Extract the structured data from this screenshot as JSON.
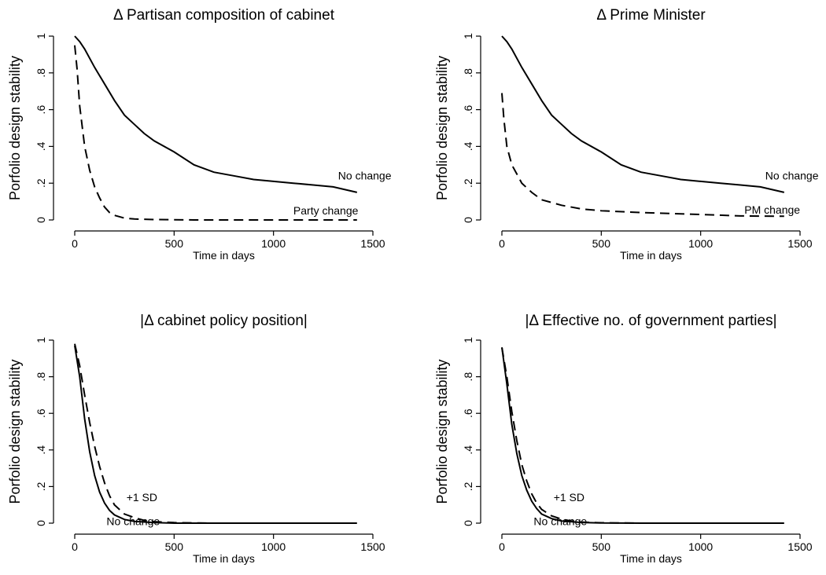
{
  "chart_data": [
    {
      "type": "line",
      "title": "Δ Partisan composition of cabinet",
      "xlabel": "Time in days",
      "ylabel": "Porfolio design stability",
      "xlim": [
        0,
        1500
      ],
      "ylim": [
        0,
        1
      ],
      "xticks": [
        "0",
        "500",
        "1000",
        "1500"
      ],
      "yticks": [
        "0",
        ".2",
        ".4",
        ".6",
        ".8",
        "1"
      ],
      "series": [
        {
          "name": "No change",
          "style": "solid",
          "label_at": [
            1325,
            0.22
          ],
          "x": [
            0,
            25,
            50,
            100,
            150,
            200,
            250,
            300,
            350,
            400,
            500,
            600,
            700,
            800,
            900,
            1000,
            1100,
            1200,
            1300,
            1420
          ],
          "y": [
            1.0,
            0.97,
            0.93,
            0.83,
            0.74,
            0.65,
            0.57,
            0.52,
            0.47,
            0.43,
            0.37,
            0.3,
            0.26,
            0.24,
            0.22,
            0.21,
            0.2,
            0.19,
            0.18,
            0.15
          ]
        },
        {
          "name": "Party change",
          "style": "dashed",
          "label_at": [
            1100,
            0.03
          ],
          "x": [
            0,
            12,
            25,
            50,
            75,
            100,
            125,
            150,
            175,
            200,
            250,
            300,
            400,
            600,
            1000,
            1420
          ],
          "y": [
            0.95,
            0.82,
            0.62,
            0.4,
            0.27,
            0.18,
            0.12,
            0.07,
            0.04,
            0.025,
            0.01,
            0.005,
            0.002,
            0.0,
            0.0,
            0.0
          ]
        }
      ]
    },
    {
      "type": "line",
      "title": "Δ Prime Minister",
      "xlabel": "Time in days",
      "ylabel": "Porfolio design stability",
      "xlim": [
        0,
        1500
      ],
      "ylim": [
        0,
        1
      ],
      "xticks": [
        "0",
        "500",
        "1000",
        "1500"
      ],
      "yticks": [
        "0",
        ".2",
        ".4",
        ".6",
        ".8",
        "1"
      ],
      "series": [
        {
          "name": "No change",
          "style": "solid",
          "label_at": [
            1325,
            0.22
          ],
          "x": [
            0,
            25,
            50,
            100,
            150,
            200,
            250,
            300,
            350,
            400,
            500,
            600,
            700,
            800,
            900,
            1000,
            1100,
            1200,
            1300,
            1420
          ],
          "y": [
            1.0,
            0.97,
            0.93,
            0.83,
            0.74,
            0.65,
            0.57,
            0.52,
            0.47,
            0.43,
            0.37,
            0.3,
            0.26,
            0.24,
            0.22,
            0.21,
            0.2,
            0.19,
            0.18,
            0.15
          ]
        },
        {
          "name": "PM change",
          "style": "dashed",
          "label_at": [
            1220,
            0.035
          ],
          "x": [
            0,
            10,
            25,
            50,
            75,
            100,
            150,
            200,
            300,
            400,
            500,
            700,
            1000,
            1200,
            1420
          ],
          "y": [
            0.69,
            0.55,
            0.4,
            0.3,
            0.25,
            0.2,
            0.15,
            0.11,
            0.08,
            0.06,
            0.05,
            0.04,
            0.03,
            0.022,
            0.02
          ]
        }
      ]
    },
    {
      "type": "line",
      "title": "|Δ cabinet policy position|",
      "xlabel": "Time in days",
      "ylabel": "Porfolio design stability",
      "xlim": [
        0,
        1500
      ],
      "ylim": [
        0,
        1
      ],
      "xticks": [
        "0",
        "500",
        "1000",
        "1500"
      ],
      "yticks": [
        "0",
        ".2",
        ".4",
        ".6",
        ".8",
        "1"
      ],
      "series": [
        {
          "name": "No change",
          "style": "solid",
          "label_at": [
            160,
            -0.01
          ],
          "x": [
            0,
            25,
            50,
            75,
            100,
            125,
            150,
            175,
            200,
            250,
            300,
            400,
            500,
            700,
            1000,
            1420
          ],
          "y": [
            0.97,
            0.8,
            0.57,
            0.39,
            0.26,
            0.17,
            0.11,
            0.07,
            0.045,
            0.02,
            0.01,
            0.003,
            0.0,
            0.0,
            0.0,
            0.0
          ]
        },
        {
          "name": "+1 SD",
          "style": "dashed",
          "label_at": [
            260,
            0.12
          ],
          "x": [
            0,
            25,
            50,
            75,
            100,
            125,
            150,
            175,
            200,
            250,
            300,
            350,
            400,
            500,
            700,
            1000,
            1420
          ],
          "y": [
            0.98,
            0.86,
            0.7,
            0.55,
            0.42,
            0.31,
            0.22,
            0.15,
            0.1,
            0.05,
            0.03,
            0.015,
            0.008,
            0.003,
            0.0,
            0.0,
            0.0
          ]
        }
      ]
    },
    {
      "type": "line",
      "title": "|Δ Effective no. of government parties|",
      "xlabel": "Time in days",
      "ylabel": "Porfolio design stability",
      "xlim": [
        0,
        1500
      ],
      "ylim": [
        0,
        1
      ],
      "xticks": [
        "0",
        "500",
        "1000",
        "1500"
      ],
      "yticks": [
        "0",
        ".2",
        ".4",
        ".6",
        ".8",
        "1"
      ],
      "series": [
        {
          "name": "No change",
          "style": "solid",
          "label_at": [
            160,
            -0.01
          ],
          "x": [
            0,
            25,
            50,
            75,
            100,
            125,
            150,
            175,
            200,
            250,
            300,
            400,
            500,
            700,
            1000,
            1420
          ],
          "y": [
            0.96,
            0.76,
            0.54,
            0.38,
            0.26,
            0.18,
            0.12,
            0.08,
            0.05,
            0.025,
            0.012,
            0.004,
            0.001,
            0.0,
            0.0,
            0.0
          ]
        },
        {
          "name": "+1 SD",
          "style": "dashed",
          "label_at": [
            260,
            0.12
          ],
          "x": [
            0,
            25,
            50,
            75,
            100,
            125,
            150,
            175,
            200,
            250,
            300,
            350,
            400,
            500,
            700,
            1000,
            1420
          ],
          "y": [
            0.96,
            0.8,
            0.61,
            0.45,
            0.32,
            0.23,
            0.16,
            0.11,
            0.075,
            0.04,
            0.022,
            0.012,
            0.006,
            0.002,
            0.0,
            0.0,
            0.0
          ]
        }
      ]
    }
  ]
}
